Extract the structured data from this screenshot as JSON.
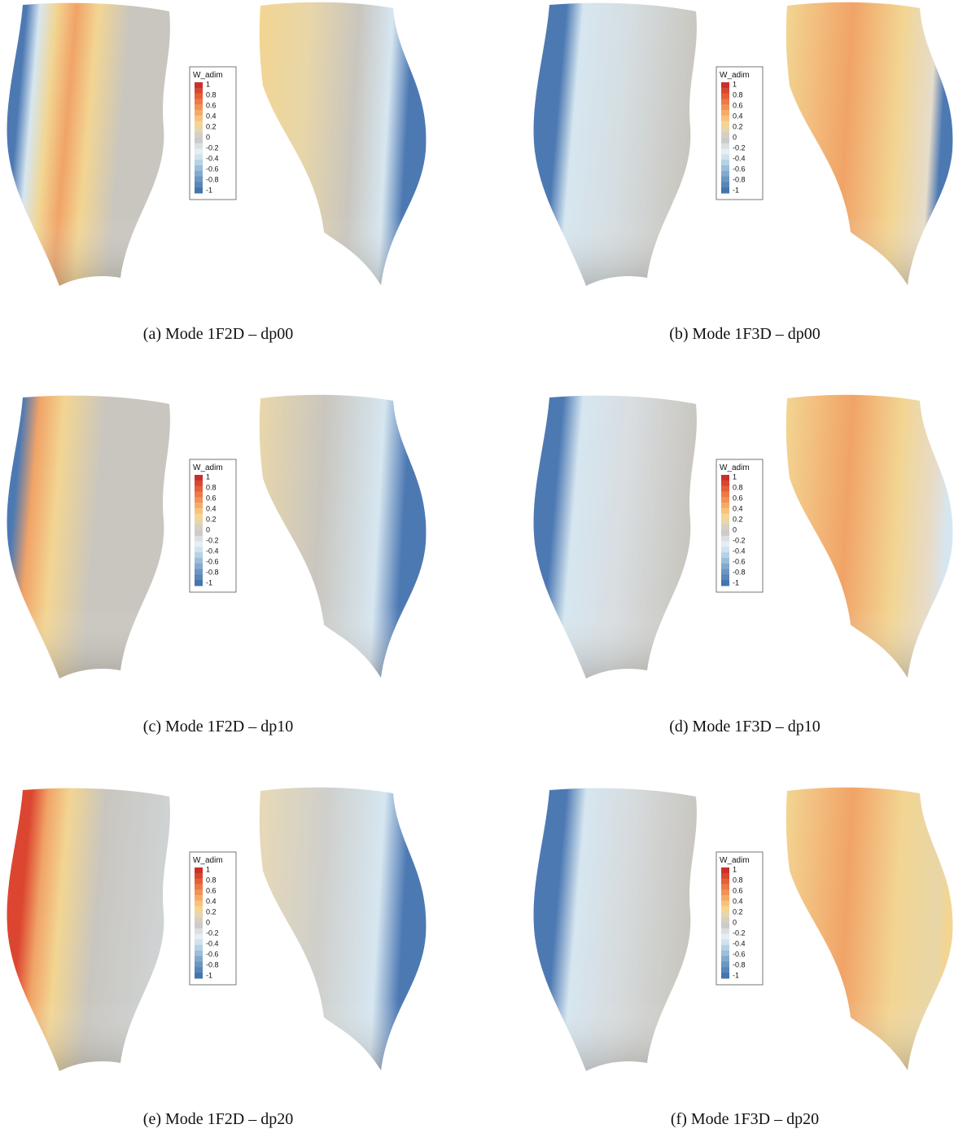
{
  "panels": [
    {
      "caption": "(a) Mode 1F2D – dp00",
      "colorbar": {
        "title": "W_adim",
        "labels": [
          "1",
          "0.8",
          "0.6",
          "0.4",
          "0.2",
          "0",
          "-0.2",
          "-0.4",
          "-0.6",
          "-0.8",
          "-1"
        ]
      }
    },
    {
      "caption": "(b) Mode 1F3D – dp00",
      "colorbar": {
        "title": "W_adim",
        "labels": [
          "1",
          "0.8",
          "0.6",
          "0.4",
          "0.2",
          "0",
          "-0.2",
          "-0.4",
          "-0.6",
          "-0.8",
          "-1"
        ]
      }
    },
    {
      "caption": "(c) Mode 1F2D – dp10",
      "colorbar": {
        "title": "W_adim",
        "labels": [
          "1",
          "0.8",
          "0.6",
          "0.4",
          "0.2",
          "0",
          "-0.2",
          "-0.4",
          "-0.6",
          "-0.8",
          "-1"
        ]
      }
    },
    {
      "caption": "(d) Mode 1F3D – dp10",
      "colorbar": {
        "title": "W_adim",
        "labels": [
          "1",
          "0.8",
          "0.6",
          "0.4",
          "0.2",
          "0",
          "-0.2",
          "-0.4",
          "-0.6",
          "-0.8",
          "-1"
        ]
      }
    },
    {
      "caption": "(e) Mode 1F2D – dp20",
      "colorbar": {
        "title": "W_adim",
        "labels": [
          "1",
          "0.8",
          "0.6",
          "0.4",
          "0.2",
          "0",
          "-0.2",
          "-0.4",
          "-0.6",
          "-0.8",
          "-1"
        ]
      }
    },
    {
      "caption": "(f) Mode 1F3D – dp20",
      "colorbar": {
        "title": "W_adim",
        "labels": [
          "1",
          "0.8",
          "0.6",
          "0.4",
          "0.2",
          "0",
          "-0.2",
          "-0.4",
          "-0.6",
          "-0.8",
          "-1"
        ]
      }
    }
  ]
}
